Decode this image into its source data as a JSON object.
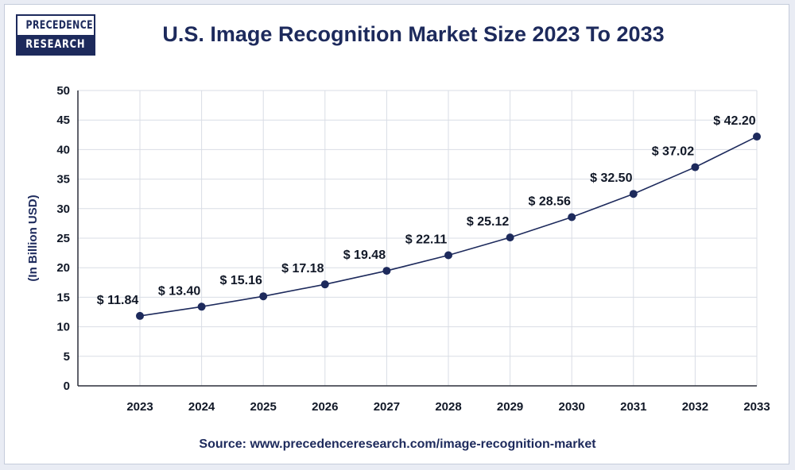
{
  "brand": {
    "line1": "PRECEDENCE",
    "line2": "RESEARCH",
    "color": "#1d2a5c"
  },
  "source": "Source: www.precedenceresearch.com/image-recognition-market",
  "chart_data": {
    "type": "line",
    "title": "U.S. Image Recognition Market Size 2023 To 2033",
    "xlabel": "",
    "ylabel": "(In Billion USD)",
    "categories": [
      "2023",
      "2024",
      "2025",
      "2026",
      "2027",
      "2028",
      "2029",
      "2030",
      "2031",
      "2032",
      "2033"
    ],
    "series": [
      {
        "values": [
          11.84,
          13.4,
          15.16,
          17.18,
          19.48,
          22.11,
          25.12,
          28.56,
          32.5,
          37.02,
          42.2
        ],
        "labels": [
          "$ 11.84",
          "$ 13.40",
          "$ 15.16",
          "$ 17.18",
          "$ 19.48",
          "$ 22.11",
          "$ 25.12",
          "$ 28.56",
          "$ 32.50",
          "$ 37.02",
          "$ 42.20"
        ],
        "color": "#1d2a5c"
      }
    ],
    "ylim": [
      0,
      50
    ],
    "yticks": [
      0,
      5,
      10,
      15,
      20,
      25,
      30,
      35,
      40,
      45,
      50
    ],
    "grid": true,
    "legend": "none"
  }
}
